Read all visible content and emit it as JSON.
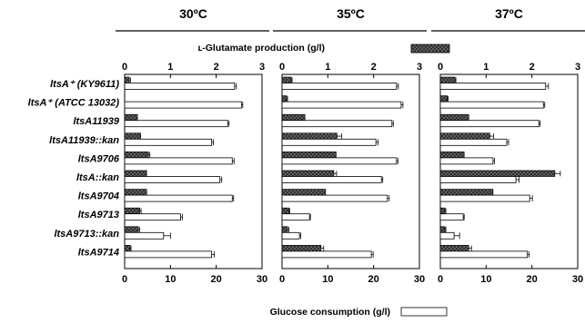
{
  "chart_data": {
    "type": "bar",
    "orientation": "horizontal",
    "legend": {
      "top_label": "ʟ-Glutamate production (g/l)",
      "bottom_label": "Glucose consumption (g/l)",
      "placement": "top-center and bottom-center"
    },
    "strains": [
      "ltsA⁺ (KY9611)",
      "ltsA⁺ (ATCC 13032)",
      "ltsA11939",
      "ltsA11939::kan",
      "ltsA9706",
      "ltsA::kan",
      "ltsA9704",
      "ltsA9713",
      "ltsA9713::kan",
      "ltsA9714"
    ],
    "top_axis": {
      "label": "ʟ-Glutamate production (g/l)",
      "range": [
        0,
        3
      ],
      "ticks": [
        "0",
        "1",
        "2",
        "3"
      ]
    },
    "bottom_axis": {
      "label": "Glucose consumption (g/l)",
      "range": [
        0,
        30
      ],
      "ticks": [
        "0",
        "10",
        "20",
        "30"
      ]
    },
    "series_styles": {
      "glutamate": {
        "color": "#555555",
        "pattern": "crosshatch"
      },
      "glucose": {
        "color": "#ffffff",
        "pattern": "none"
      }
    },
    "panels": [
      {
        "title": "30ºC",
        "glutamate": [
          0.1,
          0.0,
          0.28,
          0.35,
          0.52,
          0.48,
          0.48,
          0.33,
          0.3,
          0.12
        ],
        "glutamate_err": [
          0.03,
          0.0,
          0.0,
          0.0,
          0.03,
          0.0,
          0.0,
          0.03,
          0.03,
          0.02
        ],
        "glucose": [
          24,
          25.5,
          22.5,
          19,
          23.5,
          20.8,
          23.5,
          12.2,
          8.5,
          19
        ],
        "glucose_err": [
          0.4,
          0.3,
          0.3,
          0.4,
          0.4,
          0.4,
          0.3,
          0.4,
          1.5,
          0.6
        ]
      },
      {
        "title": "35ºC",
        "glutamate": [
          0.2,
          0.1,
          0.5,
          1.2,
          1.18,
          1.13,
          0.95,
          0.15,
          0.12,
          0.85
        ],
        "glutamate_err": [
          0.02,
          0.02,
          0.0,
          0.1,
          0.0,
          0.06,
          0.0,
          0.02,
          0.03,
          0.06
        ],
        "glucose": [
          25,
          26,
          24,
          20.5,
          25,
          21.7,
          23,
          6,
          3.8,
          19.5
        ],
        "glucose_err": [
          0.4,
          0.4,
          0.3,
          0.5,
          0.3,
          0.3,
          0.4,
          0.2,
          0.3,
          0.4
        ]
      },
      {
        "title": "37ºC",
        "glutamate": [
          0.32,
          0.15,
          0.62,
          1.08,
          0.52,
          2.5,
          1.15,
          0.1,
          0.1,
          0.62
        ],
        "glutamate_err": [
          0.02,
          0.02,
          0.0,
          0.08,
          0.0,
          0.12,
          0.0,
          0.02,
          0.02,
          0.06
        ],
        "glucose": [
          23,
          22.5,
          21.5,
          14.5,
          11.5,
          16.5,
          19.5,
          5,
          3,
          19
        ],
        "glucose_err": [
          0.6,
          0.3,
          0.3,
          0.4,
          0.3,
          0.7,
          0.6,
          0.2,
          1.2,
          0.4
        ]
      }
    ]
  }
}
